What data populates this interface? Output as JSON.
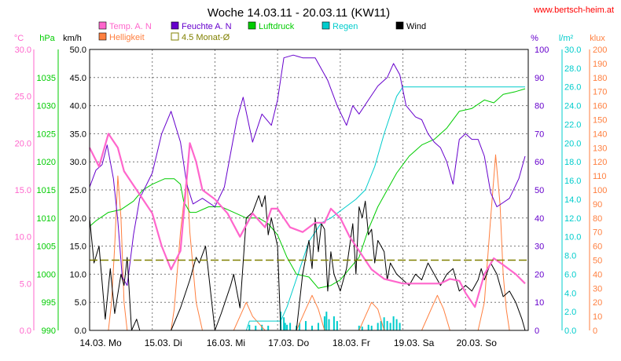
{
  "chart_data": {
    "type": "line",
    "title": "Woche 14.03.11 - 20.03.11 (KW11)",
    "source_label": "www.bertsch-heim.at",
    "grid": true,
    "colors": {
      "temp": "#ff66cc",
      "feuchte": "#6600cc",
      "luftdruck": "#00cc00",
      "regen": "#00cccc",
      "wind": "#000000",
      "helligkeit": "#ff7f3f",
      "monat": "#808000"
    },
    "legend": [
      {
        "key": "temp",
        "label": "Temp. A. N"
      },
      {
        "key": "feuchte",
        "label": "Feuchte A. N"
      },
      {
        "key": "luftdruck",
        "label": "Luftdruck"
      },
      {
        "key": "regen",
        "label": "Regen"
      },
      {
        "key": "wind",
        "label": "Wind"
      },
      {
        "key": "helligkeit",
        "label": "Helligkeit"
      },
      {
        "key": "monat",
        "label": "4.5 Monat-Ø"
      }
    ],
    "axes": {
      "temp": {
        "unit": "°C",
        "min": 0,
        "max": 30,
        "ticks": [
          "0.0",
          "5.0",
          "10.0",
          "15.0",
          "20.0",
          "25.0",
          "30.0"
        ]
      },
      "pressure": {
        "unit": "hPa",
        "min": 990,
        "max": 1040,
        "ticks": [
          "990",
          "995",
          "1000",
          "1005",
          "1010",
          "1015",
          "1020",
          "1025",
          "1030",
          "1035"
        ]
      },
      "wind": {
        "unit": "km/h",
        "min": 0,
        "max": 50,
        "ticks": [
          "0.0",
          "5.0",
          "10.0",
          "15.0",
          "20.0",
          "25.0",
          "30.0",
          "35.0",
          "40.0",
          "45.0",
          "50.0"
        ]
      },
      "humidity": {
        "unit": "%",
        "min": 0,
        "max": 100,
        "ticks": [
          "0",
          "10",
          "20",
          "30",
          "40",
          "50",
          "60",
          "70",
          "80",
          "90",
          "100"
        ]
      },
      "rain": {
        "unit": "l/m²",
        "min": 0,
        "max": 30,
        "ticks": [
          "0.0",
          "2.0",
          "4.0",
          "6.0",
          "8.0",
          "10.0",
          "12.0",
          "14.0",
          "16.0",
          "18.0",
          "20.0",
          "22.0",
          "24.0",
          "26.0",
          "28.0",
          "30.0"
        ]
      },
      "lux": {
        "unit": "klux",
        "min": 0,
        "max": 200,
        "ticks": [
          "0",
          "10",
          "20",
          "30",
          "40",
          "50",
          "60",
          "70",
          "80",
          "90",
          "100",
          "110",
          "120",
          "130",
          "140",
          "150",
          "160",
          "170",
          "180",
          "190",
          "200"
        ]
      }
    },
    "day_labels": [
      "14.03.  Mo",
      "15.03.  Di",
      "16.03.  Mi",
      "17.03.  Do",
      "18.03.  Fr",
      "19.03.  Sa",
      "20.03.  So"
    ],
    "day_range": [
      0,
      7
    ],
    "monat_avg_temp": 7.5,
    "series": {
      "temp": [
        [
          0,
          19.5
        ],
        [
          0.15,
          17.5
        ],
        [
          0.3,
          21
        ],
        [
          0.45,
          19.5
        ],
        [
          0.55,
          17
        ],
        [
          0.65,
          16
        ],
        [
          0.8,
          14.5
        ],
        [
          1,
          12.5
        ],
        [
          1.15,
          9
        ],
        [
          1.3,
          6.5
        ],
        [
          1.45,
          8.5
        ],
        [
          1.6,
          20
        ],
        [
          1.7,
          18
        ],
        [
          1.8,
          15
        ],
        [
          2,
          14
        ],
        [
          2.2,
          12.5
        ],
        [
          2.4,
          10
        ],
        [
          2.6,
          12.5
        ],
        [
          2.8,
          11
        ],
        [
          2.9,
          13
        ],
        [
          3,
          13
        ],
        [
          3.2,
          11
        ],
        [
          3.4,
          10.5
        ],
        [
          3.6,
          11.5
        ],
        [
          3.75,
          11.5
        ],
        [
          3.85,
          13
        ],
        [
          4,
          12
        ],
        [
          4.15,
          10
        ],
        [
          4.3,
          8.5
        ],
        [
          4.5,
          6.5
        ],
        [
          4.7,
          5.5
        ],
        [
          5,
          5
        ],
        [
          5.2,
          5
        ],
        [
          5.4,
          5
        ],
        [
          5.6,
          5
        ],
        [
          5.75,
          5.5
        ],
        [
          5.9,
          5.3
        ],
        [
          6,
          4
        ],
        [
          6.15,
          2.5
        ],
        [
          6.3,
          6
        ],
        [
          6.45,
          7.7
        ],
        [
          6.6,
          7
        ],
        [
          6.8,
          6
        ],
        [
          6.95,
          5
        ]
      ],
      "feuchte": [
        [
          0,
          51
        ],
        [
          0.1,
          57
        ],
        [
          0.2,
          59
        ],
        [
          0.28,
          66
        ],
        [
          0.38,
          54
        ],
        [
          0.45,
          39
        ],
        [
          0.52,
          19
        ],
        [
          0.6,
          16
        ],
        [
          0.7,
          34
        ],
        [
          0.8,
          47
        ],
        [
          1,
          56
        ],
        [
          1.15,
          70
        ],
        [
          1.3,
          78
        ],
        [
          1.45,
          67
        ],
        [
          1.55,
          52
        ],
        [
          1.65,
          45
        ],
        [
          1.8,
          47
        ],
        [
          2,
          44
        ],
        [
          2.15,
          51
        ],
        [
          2.35,
          75
        ],
        [
          2.45,
          83
        ],
        [
          2.6,
          67
        ],
        [
          2.75,
          77
        ],
        [
          2.9,
          73
        ],
        [
          3,
          82
        ],
        [
          3.1,
          97
        ],
        [
          3.25,
          98
        ],
        [
          3.4,
          97
        ],
        [
          3.6,
          97
        ],
        [
          3.8,
          89
        ],
        [
          3.95,
          80
        ],
        [
          4.1,
          73
        ],
        [
          4.2,
          80
        ],
        [
          4.3,
          77
        ],
        [
          4.45,
          82
        ],
        [
          4.6,
          87
        ],
        [
          4.75,
          90
        ],
        [
          4.85,
          95
        ],
        [
          4.95,
          91
        ],
        [
          5.05,
          80
        ],
        [
          5.2,
          76
        ],
        [
          5.3,
          75
        ],
        [
          5.4,
          70
        ],
        [
          5.5,
          67
        ],
        [
          5.6,
          65
        ],
        [
          5.7,
          60
        ],
        [
          5.8,
          52
        ],
        [
          5.9,
          68
        ],
        [
          6,
          70
        ],
        [
          6.1,
          68
        ],
        [
          6.2,
          68
        ],
        [
          6.3,
          62
        ],
        [
          6.4,
          49
        ],
        [
          6.5,
          44
        ],
        [
          6.7,
          47
        ],
        [
          6.85,
          54
        ],
        [
          6.95,
          62
        ]
      ],
      "luftdruck": [
        [
          0,
          1008.5
        ],
        [
          0.1,
          1009.5
        ],
        [
          0.3,
          1011
        ],
        [
          0.5,
          1011.5
        ],
        [
          0.7,
          1013
        ],
        [
          0.85,
          1015
        ],
        [
          1,
          1016
        ],
        [
          1.2,
          1017
        ],
        [
          1.35,
          1017
        ],
        [
          1.45,
          1016
        ],
        [
          1.5,
          1013
        ],
        [
          1.6,
          1011
        ],
        [
          1.7,
          1011
        ],
        [
          1.9,
          1012
        ],
        [
          2.1,
          1012
        ],
        [
          2.3,
          1011
        ],
        [
          2.5,
          1010
        ],
        [
          2.7,
          1010
        ],
        [
          2.85,
          1009
        ],
        [
          3,
          1007
        ],
        [
          3.15,
          1003
        ],
        [
          3.3,
          1000
        ],
        [
          3.5,
          999.5
        ],
        [
          3.65,
          997.5
        ],
        [
          3.85,
          998
        ],
        [
          4,
          999
        ],
        [
          4.15,
          1001
        ],
        [
          4.3,
          1003
        ],
        [
          4.45,
          1008
        ],
        [
          4.6,
          1012
        ],
        [
          4.75,
          1015
        ],
        [
          4.9,
          1018
        ],
        [
          5.1,
          1021
        ],
        [
          5.3,
          1023
        ],
        [
          5.5,
          1024
        ],
        [
          5.7,
          1026
        ],
        [
          5.9,
          1029
        ],
        [
          6.1,
          1029.5
        ],
        [
          6.3,
          1031
        ],
        [
          6.45,
          1030.5
        ],
        [
          6.6,
          1032
        ],
        [
          6.8,
          1032.5
        ],
        [
          6.95,
          1033
        ]
      ],
      "regen": [
        [
          0,
          0
        ],
        [
          2.5,
          0
        ],
        [
          2.55,
          1
        ],
        [
          3.05,
          1
        ],
        [
          3.15,
          2.5
        ],
        [
          3.3,
          5.5
        ],
        [
          3.5,
          9.5
        ],
        [
          3.7,
          11.5
        ],
        [
          3.85,
          12
        ],
        [
          4.05,
          13
        ],
        [
          4.25,
          14
        ],
        [
          4.4,
          15
        ],
        [
          4.55,
          17.5
        ],
        [
          4.7,
          21
        ],
        [
          4.8,
          23
        ],
        [
          4.9,
          25
        ],
        [
          5,
          26
        ],
        [
          5.1,
          26
        ],
        [
          6.95,
          26
        ]
      ],
      "wind": [
        [
          0,
          20
        ],
        [
          0.07,
          12
        ],
        [
          0.15,
          15
        ],
        [
          0.25,
          2
        ],
        [
          0.33,
          11
        ],
        [
          0.4,
          3
        ],
        [
          0.5,
          10
        ],
        [
          0.55,
          8
        ],
        [
          0.6,
          13
        ],
        [
          0.67,
          0
        ],
        [
          0.75,
          2
        ],
        [
          0.8,
          0
        ],
        [
          1.3,
          0
        ],
        [
          1.45,
          4
        ],
        [
          1.6,
          9
        ],
        [
          1.7,
          13
        ],
        [
          1.75,
          12
        ],
        [
          1.85,
          15
        ],
        [
          1.95,
          5
        ],
        [
          2,
          0
        ],
        [
          2.1,
          3
        ],
        [
          2.25,
          8
        ],
        [
          2.3,
          10
        ],
        [
          2.4,
          4
        ],
        [
          2.5,
          20
        ],
        [
          2.6,
          21
        ],
        [
          2.7,
          24
        ],
        [
          2.75,
          22
        ],
        [
          2.8,
          24
        ],
        [
          2.85,
          17
        ],
        [
          2.9,
          20
        ],
        [
          3,
          15
        ],
        [
          3.05,
          0
        ],
        [
          3.3,
          0
        ],
        [
          3.4,
          10
        ],
        [
          3.5,
          16
        ],
        [
          3.55,
          11
        ],
        [
          3.6,
          20
        ],
        [
          3.65,
          14
        ],
        [
          3.7,
          19
        ],
        [
          3.75,
          18
        ],
        [
          3.8,
          7
        ],
        [
          3.85,
          14
        ],
        [
          3.9,
          10
        ],
        [
          4,
          7
        ],
        [
          4.1,
          11
        ],
        [
          4.2,
          19
        ],
        [
          4.25,
          10
        ],
        [
          4.3,
          22
        ],
        [
          4.35,
          20
        ],
        [
          4.4,
          23
        ],
        [
          4.45,
          17
        ],
        [
          4.5,
          18
        ],
        [
          4.55,
          12
        ],
        [
          4.6,
          16
        ],
        [
          4.7,
          14
        ],
        [
          4.75,
          9
        ],
        [
          4.8,
          12
        ],
        [
          4.9,
          10
        ],
        [
          5,
          9
        ],
        [
          5.1,
          8
        ],
        [
          5.2,
          10
        ],
        [
          5.3,
          9
        ],
        [
          5.4,
          12
        ],
        [
          5.5,
          10
        ],
        [
          5.6,
          8
        ],
        [
          5.7,
          10
        ],
        [
          5.8,
          11
        ],
        [
          5.9,
          7
        ],
        [
          6,
          8
        ],
        [
          6.1,
          7
        ],
        [
          6.2,
          9
        ],
        [
          6.25,
          11
        ],
        [
          6.3,
          9
        ],
        [
          6.4,
          12
        ],
        [
          6.5,
          10
        ],
        [
          6.6,
          6
        ],
        [
          6.7,
          7
        ],
        [
          6.8,
          5
        ],
        [
          6.9,
          2
        ],
        [
          6.95,
          0
        ]
      ],
      "helligkeit": [
        [
          0,
          0
        ],
        [
          0.3,
          0
        ],
        [
          0.35,
          20
        ],
        [
          0.4,
          60
        ],
        [
          0.45,
          110
        ],
        [
          0.5,
          80
        ],
        [
          0.55,
          20
        ],
        [
          0.6,
          0
        ],
        [
          1.3,
          0
        ],
        [
          1.35,
          15
        ],
        [
          1.45,
          70
        ],
        [
          1.55,
          110
        ],
        [
          1.6,
          70
        ],
        [
          1.7,
          20
        ],
        [
          1.8,
          0
        ],
        [
          2.3,
          0
        ],
        [
          2.4,
          10
        ],
        [
          2.5,
          20
        ],
        [
          2.6,
          10
        ],
        [
          2.7,
          5
        ],
        [
          2.8,
          0
        ],
        [
          3.3,
          0
        ],
        [
          3.45,
          15
        ],
        [
          3.55,
          25
        ],
        [
          3.65,
          15
        ],
        [
          3.75,
          0
        ],
        [
          4.3,
          0
        ],
        [
          4.4,
          10
        ],
        [
          4.5,
          20
        ],
        [
          4.6,
          15
        ],
        [
          4.7,
          0
        ],
        [
          5.3,
          0
        ],
        [
          5.45,
          15
        ],
        [
          5.55,
          25
        ],
        [
          5.65,
          15
        ],
        [
          5.75,
          0
        ],
        [
          6.2,
          0
        ],
        [
          6.3,
          20
        ],
        [
          6.4,
          80
        ],
        [
          6.48,
          125
        ],
        [
          6.55,
          90
        ],
        [
          6.6,
          40
        ],
        [
          6.65,
          15
        ],
        [
          6.7,
          0
        ],
        [
          6.95,
          0
        ]
      ],
      "regen_bars": [
        [
          2.55,
          0.6
        ],
        [
          2.65,
          0.5
        ],
        [
          2.75,
          0.6
        ],
        [
          2.85,
          0.5
        ],
        [
          3.05,
          2.0
        ],
        [
          3.1,
          1.4
        ],
        [
          3.12,
          0.8
        ],
        [
          3.15,
          0.6
        ],
        [
          3.2,
          0.8
        ],
        [
          3.3,
          0.5
        ],
        [
          3.35,
          0.8
        ],
        [
          3.45,
          1.0
        ],
        [
          3.55,
          0.5
        ],
        [
          3.65,
          0.8
        ],
        [
          3.75,
          1.5
        ],
        [
          3.78,
          2.0
        ],
        [
          3.82,
          1.2
        ],
        [
          3.9,
          1.5
        ],
        [
          3.95,
          1.0
        ],
        [
          4.3,
          0.5
        ],
        [
          4.35,
          0.4
        ],
        [
          4.45,
          0.6
        ],
        [
          4.5,
          0.5
        ],
        [
          4.6,
          0.8
        ],
        [
          4.65,
          1.0
        ],
        [
          4.7,
          1.4
        ],
        [
          4.75,
          1.0
        ],
        [
          4.8,
          0.8
        ],
        [
          4.85,
          1.5
        ],
        [
          4.9,
          1.2
        ],
        [
          4.95,
          0.8
        ]
      ]
    }
  }
}
